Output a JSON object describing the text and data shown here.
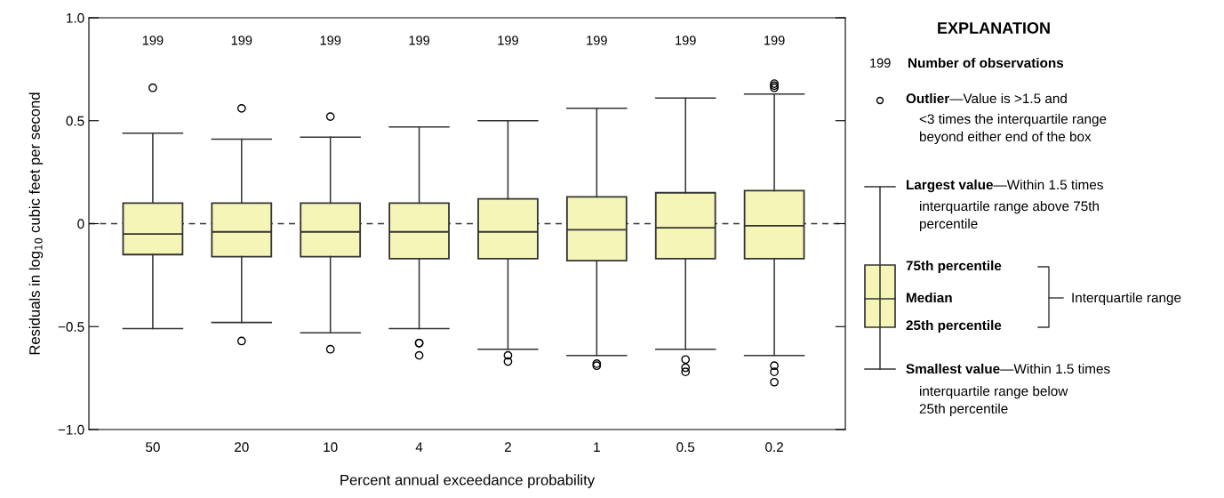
{
  "chart_data": {
    "type": "box",
    "xlabel": "Percent annual exceedance probability",
    "ylabel": "Residuals in log$_{10}$ cubic feet per second",
    "categories": [
      "50",
      "20",
      "10",
      "4",
      "2",
      "1",
      "0.5",
      "0.2"
    ],
    "color": "#f5f5b8",
    "boxes": [
      {
        "low": -0.51,
        "q1": -0.15,
        "median": -0.05,
        "q3": 0.1,
        "high": 0.44,
        "outliers": [
          0.66
        ]
      },
      {
        "low": -0.48,
        "q1": -0.16,
        "median": -0.04,
        "q3": 0.1,
        "high": 0.41,
        "outliers": [
          0.56,
          -0.57
        ]
      },
      {
        "low": -0.53,
        "q1": -0.16,
        "median": -0.04,
        "q3": 0.1,
        "high": 0.42,
        "outliers": [
          0.52,
          -0.61
        ]
      },
      {
        "low": -0.51,
        "q1": -0.17,
        "median": -0.04,
        "q3": 0.1,
        "high": 0.47,
        "outliers": [
          -0.58,
          -0.58,
          -0.64
        ]
      },
      {
        "low": -0.61,
        "q1": -0.17,
        "median": -0.04,
        "q3": 0.12,
        "high": 0.5,
        "outliers": [
          -0.64,
          -0.67
        ]
      },
      {
        "low": -0.64,
        "q1": -0.18,
        "median": -0.03,
        "q3": 0.13,
        "high": 0.56,
        "outliers": [
          -0.68,
          -0.69
        ]
      },
      {
        "low": -0.61,
        "q1": -0.17,
        "median": -0.02,
        "q3": 0.15,
        "high": 0.61,
        "outliers": [
          -0.66,
          -0.7,
          -0.72
        ]
      },
      {
        "low": -0.64,
        "q1": -0.17,
        "median": -0.01,
        "q3": 0.16,
        "high": 0.63,
        "outliers": [
          0.68,
          0.67,
          0.66,
          -0.69,
          -0.72,
          -0.77
        ]
      }
    ],
    "ylim": [
      -1.0,
      1.0
    ],
    "yticks": [
      {
        "value": -1.0,
        "label": "−1.0"
      },
      {
        "value": -0.5,
        "label": "−0.5"
      },
      0,
      {
        "value": 0.5,
        "label": "0.5"
      },
      {
        "value": 1.0,
        "label": "1.0"
      }
    ],
    "ref_lines": [
      {
        "axis": "y",
        "value": 0,
        "line_style": "dashed",
        "color": "#333333"
      }
    ],
    "annotations": [
      "199",
      "199",
      "199",
      "199",
      "199",
      "199",
      "199",
      "199",
      "EXPLANATION",
      "199",
      "Number of observations",
      "Outlier",
      "—Value is >1.5 and",
      "<3 times the interquartile range\nbeyond either end of the box",
      "Largest value",
      "—Within 1.5 times",
      "interquartile range above 75th\npercentile",
      "75th percentile",
      "Median",
      "25th percentile",
      "Interquartile range",
      "Smallest value",
      "—Within 1.5 times",
      "interquartile range below\n25th percentile"
    ],
    "grid": false
  }
}
